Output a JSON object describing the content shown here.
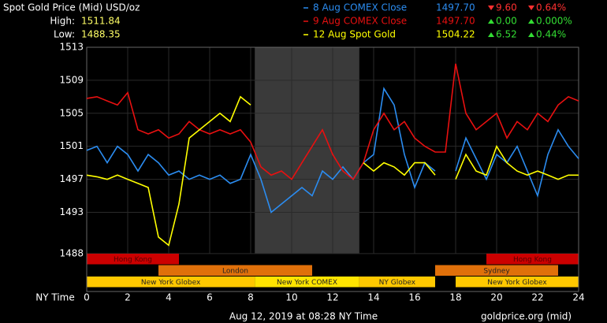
{
  "chart_data": {
    "type": "line",
    "title": "Spot Gold Price (Mid) USD/oz",
    "high_label": "High:",
    "high": "1511.84",
    "low_label": "Low:",
    "low": "1488.35",
    "x_label": "NY Time",
    "footer": "Aug 12, 2019 at 08:28 NY Time",
    "source": "goldprice.org (mid)",
    "x": [
      0,
      0.5,
      1,
      1.5,
      2,
      2.5,
      3,
      3.5,
      4,
      4.5,
      5,
      5.5,
      6,
      6.5,
      7,
      7.5,
      8,
      8.5,
      9,
      9.5,
      10,
      10.5,
      11,
      11.5,
      12,
      12.5,
      13,
      13.5,
      14,
      14.5,
      15,
      15.5,
      16,
      16.5,
      17,
      17.5,
      18,
      18.5,
      19,
      19.5,
      20,
      20.5,
      21,
      21.5,
      22,
      22.5,
      23,
      23.5,
      24
    ],
    "series": [
      {
        "name": "8 Aug COMEX Close",
        "color": "#2b8cf0",
        "close": "1497.70",
        "change": "9.60",
        "pct": "0.64%",
        "direction": "down",
        "values": [
          1500.5,
          1501,
          1499,
          1501,
          1500,
          1498,
          1500,
          1499,
          1497.5,
          1498,
          1497,
          1497.5,
          1497,
          1497.5,
          1496.5,
          1497,
          1500,
          1497,
          1493,
          1494,
          1495,
          1496,
          1495,
          1498,
          1497,
          1498.5,
          1497,
          1499,
          1500,
          1508,
          1506,
          1500,
          1496,
          1499,
          1498,
          null,
          1498,
          1502,
          1499.5,
          1497,
          1500,
          1499,
          1501,
          1498,
          1495,
          1500,
          1503,
          1501,
          1499.5
        ]
      },
      {
        "name": "9 Aug COMEX Close",
        "color": "#e81010",
        "close": "1497.70",
        "change": "0.00",
        "pct": "0.000%",
        "direction": "up",
        "values": [
          1506.8,
          1507,
          1506.5,
          1506,
          1507.5,
          1503,
          1502.5,
          1503,
          1502,
          1502.5,
          1504,
          1503,
          1502.5,
          1503,
          1502.5,
          1503,
          1501.5,
          1498.5,
          1497.5,
          1498,
          1497,
          1499,
          1501,
          1503,
          1500,
          1498,
          1497,
          1499,
          1503,
          1505,
          1503,
          1504,
          1502,
          1501,
          1500.3,
          1500.3,
          1511,
          1505,
          1503,
          1504,
          1505,
          1502,
          1504,
          1503,
          1505,
          1504,
          1506,
          1507,
          1506.5
        ]
      },
      {
        "name": "12 Aug Spot Gold",
        "color": "#ffff00",
        "close": "1504.22",
        "change": "6.52",
        "pct": "0.44%",
        "direction": "up",
        "values": [
          1497.5,
          1497.3,
          1497,
          1497.5,
          1497,
          1496.5,
          1496,
          1490,
          1489,
          1494,
          1502,
          1503,
          1504,
          1505,
          1504,
          1507,
          1506,
          null,
          null,
          null,
          null,
          null,
          null,
          null,
          null,
          null,
          null,
          1499,
          1498,
          1499,
          1498.5,
          1497.5,
          1499,
          1499,
          1497.5,
          null,
          1497,
          1500,
          1498,
          1497.5,
          1501,
          1499,
          1498,
          1497.5,
          1498,
          1497.5,
          1497,
          1497.5,
          1497.5
        ]
      }
    ],
    "xlim": [
      0,
      24
    ],
    "xticks": [
      0,
      2,
      4,
      6,
      8,
      10,
      12,
      14,
      16,
      18,
      20,
      22,
      24
    ],
    "ylim": [
      1483.4,
      1513
    ],
    "yticks": [
      1488,
      1493,
      1497,
      1501,
      1505,
      1509,
      1513
    ],
    "grid": true,
    "session_rows": [
      [
        {
          "name": "Hong Kong",
          "start": 0,
          "end": 4.5,
          "color": "#cc0000"
        },
        {
          "name": "Hong Kong",
          "start": 19.5,
          "end": 24,
          "color": "#cc0000"
        }
      ],
      [
        {
          "name": "London",
          "start": 3.5,
          "end": 11,
          "color": "#e0700a"
        },
        {
          "name": "Sydney",
          "start": 17,
          "end": 23,
          "color": "#e0700a"
        }
      ],
      [
        {
          "name": "New York Globex",
          "start": 0,
          "end": 8.2,
          "color": "#ffc800"
        },
        {
          "name": "New York COMEX",
          "start": 8.2,
          "end": 13.3,
          "color": "#ffe400",
          "shade": true
        },
        {
          "name": "NY Globex",
          "start": 13.3,
          "end": 17,
          "color": "#ffc800"
        },
        {
          "name": "New York Globex",
          "start": 18,
          "end": 24,
          "color": "#ffc800"
        }
      ]
    ]
  }
}
